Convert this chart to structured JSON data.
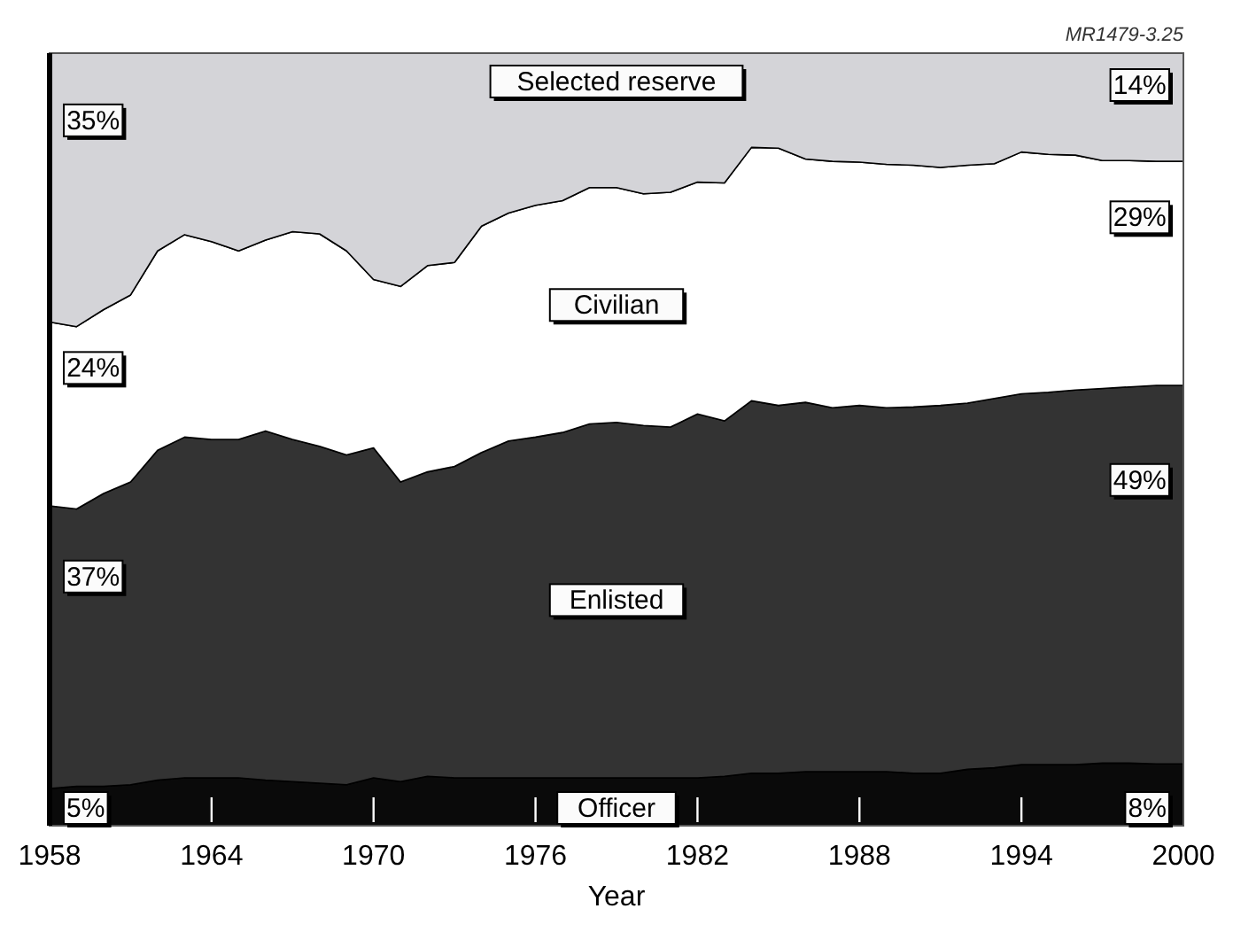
{
  "chart_data": {
    "type": "area",
    "stacked": true,
    "xlabel": "Year",
    "xlim": [
      1958,
      2000
    ],
    "xticks": [
      1958,
      1964,
      1970,
      1976,
      1982,
      1988,
      1994,
      2000
    ],
    "ylim": [
      0,
      100
    ],
    "annotations": [
      "MR1479-3.25"
    ],
    "x": [
      1958,
      1959,
      1960,
      1961,
      1962,
      1963,
      1964,
      1965,
      1966,
      1967,
      1968,
      1969,
      1970,
      1971,
      1972,
      1973,
      1974,
      1975,
      1976,
      1977,
      1978,
      1979,
      1980,
      1981,
      1982,
      1983,
      1984,
      1985,
      1986,
      1987,
      1988,
      1989,
      1990,
      1991,
      1992,
      1993,
      1994,
      1995,
      1996,
      1997,
      1998,
      1999,
      2000
    ],
    "series": [
      {
        "name": "Officer",
        "color": "#0a0a0a",
        "values": [
          4.8,
          5.1,
          5.1,
          5.3,
          5.9,
          6.2,
          6.2,
          6.2,
          5.9,
          5.7,
          5.5,
          5.3,
          6.2,
          5.7,
          6.4,
          6.2,
          6.2,
          6.2,
          6.2,
          6.2,
          6.2,
          6.2,
          6.2,
          6.2,
          6.2,
          6.4,
          6.8,
          6.8,
          7.0,
          7.0,
          7.0,
          7.0,
          6.8,
          6.8,
          7.3,
          7.5,
          7.9,
          7.9,
          7.9,
          8.1,
          8.1,
          8.0,
          8.0
        ],
        "value_labels": [
          "5%",
          null,
          null,
          null,
          null,
          null,
          null,
          null,
          null,
          null,
          null,
          null,
          null,
          null,
          null,
          null,
          null,
          null,
          null,
          null,
          null,
          null,
          null,
          null,
          null,
          null,
          null,
          null,
          null,
          null,
          null,
          null,
          null,
          null,
          null,
          null,
          null,
          null,
          null,
          null,
          null,
          null,
          "8%"
        ]
      },
      {
        "name": "Enlisted",
        "color": "#333333",
        "values": [
          36.6,
          35.9,
          37.9,
          39.2,
          42.7,
          44.1,
          43.8,
          43.8,
          45.2,
          44.3,
          43.6,
          42.7,
          42.7,
          38.8,
          39.4,
          40.3,
          42.1,
          43.6,
          44.1,
          44.7,
          45.8,
          46.0,
          45.6,
          45.4,
          47.1,
          46.0,
          48.2,
          47.6,
          47.8,
          47.1,
          47.4,
          47.1,
          47.4,
          47.6,
          47.4,
          47.8,
          48.0,
          48.2,
          48.5,
          48.5,
          48.7,
          49.0,
          49.0
        ],
        "value_labels": [
          "37%",
          null,
          null,
          null,
          null,
          null,
          null,
          null,
          null,
          null,
          null,
          null,
          null,
          null,
          null,
          null,
          null,
          null,
          null,
          null,
          null,
          null,
          null,
          null,
          null,
          null,
          null,
          null,
          null,
          null,
          null,
          null,
          null,
          null,
          null,
          null,
          null,
          null,
          null,
          null,
          null,
          null,
          "49%"
        ]
      },
      {
        "name": "Civilian",
        "color": "#ffffff",
        "values": [
          23.8,
          23.6,
          23.8,
          24.2,
          25.8,
          26.2,
          25.6,
          24.4,
          24.7,
          26.9,
          27.5,
          26.4,
          21.8,
          25.3,
          26.7,
          26.4,
          29.3,
          29.5,
          30.0,
          30.0,
          30.6,
          30.4,
          30.0,
          30.4,
          30.0,
          30.8,
          32.8,
          33.3,
          31.5,
          31.9,
          31.5,
          31.5,
          31.3,
          30.8,
          30.8,
          30.4,
          31.3,
          30.8,
          30.4,
          29.5,
          29.3,
          29.0,
          29.0
        ],
        "value_labels": [
          "24%",
          null,
          null,
          null,
          null,
          null,
          null,
          null,
          null,
          null,
          null,
          null,
          null,
          null,
          null,
          null,
          null,
          null,
          null,
          null,
          null,
          null,
          null,
          null,
          null,
          null,
          null,
          null,
          null,
          null,
          null,
          null,
          null,
          null,
          null,
          null,
          null,
          null,
          null,
          null,
          null,
          null,
          "29%"
        ]
      },
      {
        "name": "Selected reserve",
        "color": "#d4d4d8",
        "values": [
          34.8,
          35.4,
          33.2,
          31.3,
          25.6,
          23.5,
          24.4,
          25.6,
          24.2,
          23.1,
          23.4,
          25.6,
          29.3,
          30.2,
          27.5,
          27.1,
          22.4,
          20.7,
          19.7,
          19.1,
          17.4,
          17.4,
          18.2,
          18.0,
          16.7,
          16.8,
          12.2,
          12.3,
          13.7,
          14.0,
          14.1,
          14.4,
          14.5,
          14.8,
          14.5,
          14.3,
          12.8,
          13.1,
          13.2,
          13.9,
          13.9,
          14.0,
          14.0
        ],
        "value_labels": [
          "35%",
          null,
          null,
          null,
          null,
          null,
          null,
          null,
          null,
          null,
          null,
          null,
          null,
          null,
          null,
          null,
          null,
          null,
          null,
          null,
          null,
          null,
          null,
          null,
          null,
          null,
          null,
          null,
          null,
          null,
          null,
          null,
          null,
          null,
          null,
          null,
          null,
          null,
          null,
          null,
          null,
          null,
          "14%"
        ]
      }
    ]
  }
}
